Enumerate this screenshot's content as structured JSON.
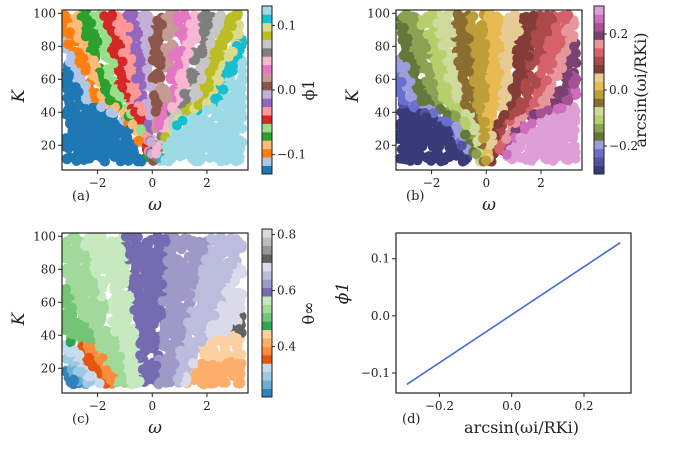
{
  "figure": {
    "panels": [
      {
        "label": "(a)",
        "xlabel": "ω",
        "ylabel": "K",
        "colorbar_label": "ϕ1"
      },
      {
        "label": "(b)",
        "xlabel": "ω",
        "ylabel": "K",
        "colorbar_label": "arcsin(ωi/RKi)"
      },
      {
        "label": "(c)",
        "xlabel": "ω",
        "ylabel": "K",
        "colorbar_label": "θ∞"
      },
      {
        "label": "(d)",
        "xlabel": "arcsin(ωi/RKi)",
        "ylabel": "ϕ1"
      }
    ]
  },
  "chart_data": [
    {
      "panel": "a",
      "type": "scatter",
      "xlabel": "ω",
      "ylabel": "K",
      "xlim": [
        -3.3,
        3.5
      ],
      "ylim": [
        5,
        102
      ],
      "xticks": [
        -2,
        0,
        2
      ],
      "yticks": [
        20,
        40,
        60,
        80,
        100
      ],
      "color_variable": "ϕ1",
      "colorbar_range": [
        -0.13,
        0.13
      ],
      "colorbar_ticks": [
        -0.1,
        0.0,
        0.1
      ],
      "colormap": "tab20",
      "x_domain": [
        -3.2,
        3.3
      ],
      "y_domain": [
        10,
        100
      ]
    },
    {
      "panel": "b",
      "type": "scatter",
      "xlabel": "ω",
      "ylabel": "K",
      "xlim": [
        -3.3,
        3.5
      ],
      "ylim": [
        5,
        102
      ],
      "xticks": [
        -2,
        0,
        2
      ],
      "yticks": [
        20,
        40,
        60,
        80,
        100
      ],
      "color_variable": "arcsin(ωi/RKi)",
      "colorbar_range": [
        -0.3,
        0.3
      ],
      "colorbar_ticks": [
        -0.2,
        0.0,
        0.2
      ],
      "colormap": "tab20b",
      "x_domain": [
        -3.2,
        3.3
      ],
      "y_domain": [
        10,
        100
      ]
    },
    {
      "panel": "c",
      "type": "scatter",
      "xlabel": "ω",
      "ylabel": "K",
      "xlim": [
        -3.3,
        3.5
      ],
      "ylim": [
        5,
        102
      ],
      "xticks": [
        -2,
        0,
        2
      ],
      "yticks": [
        20,
        40,
        60,
        80,
        100
      ],
      "color_variable": "θ∞",
      "colorbar_range": [
        0.22,
        0.82
      ],
      "colorbar_ticks": [
        0.4,
        0.6,
        0.8
      ],
      "colormap": "tab20c",
      "x_domain": [
        -3.2,
        3.3
      ],
      "y_domain": [
        10,
        100
      ]
    },
    {
      "panel": "d",
      "type": "line",
      "xlabel": "arcsin(ωi/RKi)",
      "ylabel": "ϕ1",
      "xlim": [
        -0.32,
        0.33
      ],
      "ylim": [
        -0.135,
        0.145
      ],
      "xticks": [
        -0.2,
        0.0,
        0.2
      ],
      "yticks": [
        -0.1,
        0.0,
        0.1
      ],
      "line_color": "#4169d8",
      "series": [
        {
          "x": [
            -0.29,
            0.3
          ],
          "y": [
            -0.12,
            0.128
          ]
        }
      ]
    }
  ],
  "colors": {
    "tab20": [
      "#1f77b4",
      "#aec7e8",
      "#ff7f0e",
      "#ffbb78",
      "#2ca02c",
      "#98df8a",
      "#d62728",
      "#ff9896",
      "#9467bd",
      "#c5b0d5",
      "#8c564b",
      "#c49c94",
      "#e377c2",
      "#f7b6d2",
      "#7f7f7f",
      "#c7c7c7",
      "#bcbd22",
      "#dbdb8d",
      "#17becf",
      "#9edae5"
    ],
    "tab20b": [
      "#393b79",
      "#5254a3",
      "#6b6ecf",
      "#9c9ede",
      "#637939",
      "#8ca252",
      "#b5cf6b",
      "#cedb9c",
      "#8c6d31",
      "#bd9e39",
      "#e7ba52",
      "#e7cb94",
      "#843c39",
      "#ad494a",
      "#d6616b",
      "#e7969c",
      "#7b4173",
      "#a55194",
      "#ce6dbd",
      "#de9ed6"
    ],
    "tab20c": [
      "#3182bd",
      "#6baed6",
      "#9ecae1",
      "#c6dbef",
      "#e6550d",
      "#fd8d3c",
      "#fdae6b",
      "#fdd0a2",
      "#31a354",
      "#74c476",
      "#a1d99b",
      "#c7e9c0",
      "#756bb1",
      "#9e9ac8",
      "#bcbddc",
      "#dadaeb",
      "#636363",
      "#969696",
      "#bdbdbd",
      "#d9d9d9"
    ]
  }
}
